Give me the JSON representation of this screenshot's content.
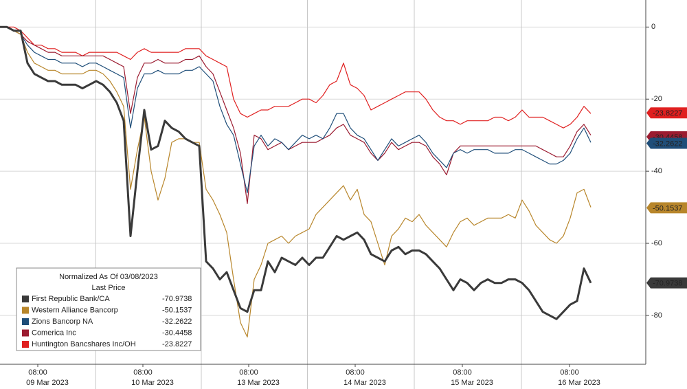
{
  "chart_data": {
    "type": "line",
    "legend_title": "Normalized As Of 03/08/2023",
    "legend_subtitle": "Last Price",
    "x": [
      0,
      10,
      20,
      30,
      40,
      50,
      60,
      70,
      80,
      90,
      100,
      110,
      120,
      130,
      140,
      150,
      160,
      170,
      180,
      190,
      200,
      210,
      220,
      230,
      240,
      250,
      260,
      270,
      280,
      290,
      300,
      310,
      320,
      330,
      340,
      350,
      360,
      370,
      380,
      390,
      400,
      410,
      420,
      430,
      440,
      450,
      460,
      470,
      480,
      490,
      500,
      510,
      520,
      530,
      540,
      550,
      560,
      570,
      580,
      590,
      600,
      610,
      620,
      630,
      640,
      650,
      660,
      670,
      680,
      690,
      700,
      710,
      720,
      730,
      740,
      750,
      760,
      770,
      780,
      790,
      800,
      810,
      820,
      830,
      840,
      850,
      860
    ],
    "xlim": [
      0,
      940
    ],
    "xticks": [
      {
        "value": 55,
        "label": "08:00"
      },
      {
        "value": 208,
        "label": "08:00"
      },
      {
        "value": 362,
        "label": "08:00"
      },
      {
        "value": 517,
        "label": "08:00"
      },
      {
        "value": 673,
        "label": "08:00"
      },
      {
        "value": 829,
        "label": "08:00"
      }
    ],
    "dates": [
      "09 Mar 2023",
      "10 Mar 2023",
      "13 Mar 2023",
      "14 Mar 2023",
      "15 Mar 2023",
      "16 Mar 2023"
    ],
    "ylim": [
      -90.5,
      7.5
    ],
    "yticks": [
      0,
      -20,
      -40,
      -60,
      -80
    ],
    "grid": true,
    "series": [
      {
        "name": "First Republic Bank/CA",
        "color": "#3a3a3a",
        "width": 3,
        "last_price": -70.9738,
        "values": [
          0,
          0,
          -1,
          -1,
          -10,
          -13,
          -14,
          -15,
          -15,
          -16,
          -16,
          -16,
          -17,
          -16,
          -15,
          -16,
          -18,
          -21,
          -26,
          -58,
          -40,
          -23,
          -34,
          -33,
          -26,
          -28,
          -29,
          -31,
          -32,
          -33,
          -65,
          -67,
          -70,
          -68,
          -73,
          -78,
          -79,
          -73,
          -73,
          -65,
          -68,
          -64,
          -65,
          -66,
          -64,
          -66,
          -64,
          -64,
          -61,
          -58,
          -59,
          -58,
          -57,
          -59,
          -63,
          -64,
          -65,
          -62,
          -61,
          -63,
          -62,
          -62,
          -63,
          -65,
          -67,
          -70,
          -73,
          -70,
          -71,
          -73,
          -71,
          -70,
          -71,
          -71,
          -70,
          -70,
          -71,
          -73,
          -76,
          -79,
          -80,
          -81,
          -79,
          -77,
          -76,
          -67,
          -71
        ]
      },
      {
        "name": "Western Alliance Bancorp",
        "color": "#b8862b",
        "width": 1.2,
        "last_price": -50.1537,
        "values": [
          0,
          0,
          -1,
          -2,
          -7,
          -10,
          -11,
          -12,
          -12,
          -13,
          -13,
          -13,
          -13,
          -12,
          -12,
          -13,
          -15,
          -18,
          -22,
          -45,
          -34,
          -25,
          -40,
          -48,
          -42,
          -32,
          -31,
          -31,
          -32,
          -32,
          -45,
          -48,
          -52,
          -57,
          -70,
          -82,
          -86,
          -70,
          -66,
          -60,
          -59,
          -58,
          -60,
          -58,
          -57,
          -56,
          -52,
          -50,
          -48,
          -46,
          -44,
          -48,
          -45,
          -52,
          -54,
          -60,
          -66,
          -58,
          -56,
          -53,
          -54,
          -52,
          -55,
          -57,
          -59,
          -61,
          -57,
          -54,
          -53,
          -55,
          -54,
          -53,
          -53,
          -53,
          -52,
          -53,
          -48,
          -51,
          -55,
          -57,
          -59,
          -60,
          -58,
          -53,
          -46,
          -45,
          -50
        ]
      },
      {
        "name": "Zions Bancorp NA",
        "color": "#1f4e79",
        "width": 1.2,
        "last_price": -32.2622,
        "values": [
          0,
          0,
          -1,
          -2,
          -5,
          -7,
          -8,
          -9,
          -9,
          -10,
          -10,
          -10,
          -11,
          -10,
          -10,
          -11,
          -12,
          -13,
          -14,
          -28,
          -17,
          -13,
          -13,
          -12,
          -13,
          -13,
          -13,
          -12,
          -12,
          -11,
          -13,
          -15,
          -22,
          -27,
          -30,
          -38,
          -46,
          -33,
          -30,
          -33,
          -31,
          -32,
          -34,
          -32,
          -30,
          -31,
          -30,
          -31,
          -28,
          -24,
          -24,
          -28,
          -30,
          -31,
          -34,
          -37,
          -34,
          -31,
          -33,
          -32,
          -31,
          -30,
          -32,
          -35,
          -37,
          -39,
          -35,
          -34,
          -35,
          -34,
          -34,
          -34,
          -35,
          -35,
          -35,
          -34,
          -34,
          -35,
          -36,
          -37,
          -38,
          -38,
          -37,
          -35,
          -31,
          -28,
          -32
        ]
      },
      {
        "name": "Comerica Inc",
        "color": "#9b1b30",
        "width": 1.2,
        "last_price": -30.4458,
        "values": [
          0,
          0,
          -1,
          -2,
          -4,
          -5,
          -6,
          -7,
          -7,
          -8,
          -8,
          -8,
          -8,
          -8,
          -8,
          -8,
          -9,
          -10,
          -11,
          -24,
          -14,
          -10,
          -10,
          -9,
          -10,
          -10,
          -10,
          -9,
          -9,
          -8,
          -11,
          -13,
          -18,
          -23,
          -28,
          -35,
          -49,
          -30,
          -31,
          -34,
          -33,
          -32,
          -34,
          -33,
          -32,
          -32,
          -32,
          -31,
          -30,
          -28,
          -27,
          -30,
          -31,
          -32,
          -35,
          -37,
          -35,
          -32,
          -34,
          -33,
          -32,
          -32,
          -33,
          -36,
          -38,
          -41,
          -35,
          -33,
          -33,
          -33,
          -33,
          -33,
          -33,
          -33,
          -33,
          -33,
          -33,
          -33,
          -33,
          -34,
          -35,
          -36,
          -36,
          -33,
          -29,
          -27,
          -30
        ]
      },
      {
        "name": "Huntington Bancshares Inc/OH",
        "color": "#e02020",
        "width": 1.2,
        "last_price": -23.8227,
        "values": [
          0,
          0,
          0,
          -1,
          -3,
          -5,
          -5,
          -6,
          -6,
          -7,
          -7,
          -7,
          -8,
          -7,
          -7,
          -7,
          -7,
          -7,
          -8,
          -9,
          -7,
          -6,
          -7,
          -7,
          -7,
          -7,
          -7,
          -6,
          -6,
          -6,
          -8,
          -9,
          -10,
          -11,
          -20,
          -24,
          -25,
          -24,
          -23,
          -23,
          -22,
          -22,
          -22,
          -21,
          -20,
          -20,
          -21,
          -19,
          -16,
          -15,
          -10,
          -16,
          -17,
          -19,
          -23,
          -22,
          -21,
          -20,
          -19,
          -18,
          -18,
          -18,
          -20,
          -23,
          -25,
          -26,
          -26,
          -27,
          -26,
          -26,
          -26,
          -26,
          -25,
          -25,
          -26,
          -25,
          -23,
          -25,
          -25,
          -25,
          -26,
          -27,
          -28,
          -27,
          -25,
          -22,
          -24
        ]
      }
    ]
  }
}
